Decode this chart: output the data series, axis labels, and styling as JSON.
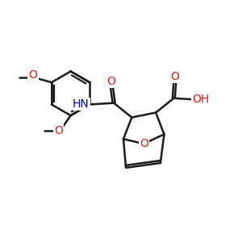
{
  "bg": "#ffffff",
  "bc": "#1a1a1a",
  "Oc": "#ee1111",
  "Nc": "#0000cc",
  "lw": 1.8,
  "lw_dbl": 1.6,
  "fs": 10,
  "dpi": 100,
  "figsize": [
    3.0,
    3.0
  ],
  "xlim": [
    0,
    10
  ],
  "ylim": [
    0,
    10
  ]
}
